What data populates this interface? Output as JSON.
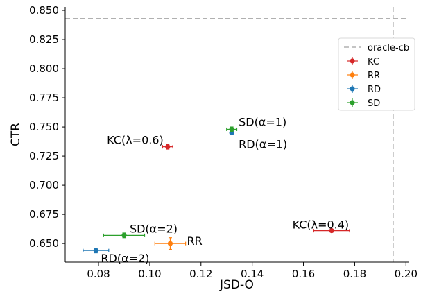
{
  "chart_data": {
    "type": "scatter",
    "xlabel": "JSD-O",
    "ylabel": "CTR",
    "xlim": [
      0.067,
      0.201
    ],
    "ylim": [
      0.634,
      0.853
    ],
    "xticks": [
      "0.08",
      "0.10",
      "0.12",
      "0.14",
      "0.16",
      "0.18",
      "0.20"
    ],
    "yticks": [
      "0.650",
      "0.675",
      "0.700",
      "0.725",
      "0.750",
      "0.775",
      "0.800",
      "0.825",
      "0.850"
    ],
    "reference_lines": {
      "label": "oracle-cb",
      "color": "#b0b0b0",
      "y": 0.843,
      "x": 0.195
    },
    "series": [
      {
        "name": "KC",
        "color": "#d62728",
        "points": [
          {
            "x": 0.107,
            "y": 0.733,
            "xerr": 0.002,
            "yerr": 0.002
          },
          {
            "x": 0.171,
            "y": 0.661,
            "xerr": 0.007,
            "yerr": 0.001
          }
        ]
      },
      {
        "name": "RR",
        "color": "#ff7f0e",
        "points": [
          {
            "x": 0.108,
            "y": 0.65,
            "xerr": 0.006,
            "yerr": 0.005
          }
        ]
      },
      {
        "name": "RD",
        "color": "#1f77b4",
        "points": [
          {
            "x": 0.079,
            "y": 0.644,
            "xerr": 0.005,
            "yerr": 0.002
          },
          {
            "x": 0.132,
            "y": 0.745,
            "xerr": 0.0,
            "yerr": 0.001
          }
        ]
      },
      {
        "name": "SD",
        "color": "#2ca02c",
        "points": [
          {
            "x": 0.09,
            "y": 0.657,
            "xerr": 0.008,
            "yerr": 0.002
          },
          {
            "x": 0.132,
            "y": 0.748,
            "xerr": 0.002,
            "yerr": 0.002
          }
        ]
      }
    ],
    "annotations": [
      {
        "text": "KC(λ=0.6)",
        "x": 0.107,
        "y": 0.733,
        "anchor": "end",
        "dx": -6,
        "dy": -4
      },
      {
        "text": "SD(α=1)",
        "x": 0.132,
        "y": 0.748,
        "anchor": "start",
        "dx": 10,
        "dy": -5
      },
      {
        "text": "RD(α=1)",
        "x": 0.132,
        "y": 0.745,
        "anchor": "start",
        "dx": 10,
        "dy": 22
      },
      {
        "text": "KC(λ=0.4)",
        "x": 0.171,
        "y": 0.661,
        "anchor": "end",
        "dx": 25,
        "dy": -3
      },
      {
        "text": "SD(α=2)",
        "x": 0.09,
        "y": 0.657,
        "anchor": "start",
        "dx": 8,
        "dy": -4
      },
      {
        "text": "RR",
        "x": 0.108,
        "y": 0.65,
        "anchor": "start",
        "dx": 24,
        "dy": 2
      },
      {
        "text": "RD(α=2)",
        "x": 0.079,
        "y": 0.644,
        "anchor": "start",
        "dx": 7,
        "dy": 17
      }
    ],
    "legend": {
      "position": "right",
      "entries": [
        "oracle-cb",
        "KC",
        "RR",
        "RD",
        "SD"
      ]
    }
  }
}
